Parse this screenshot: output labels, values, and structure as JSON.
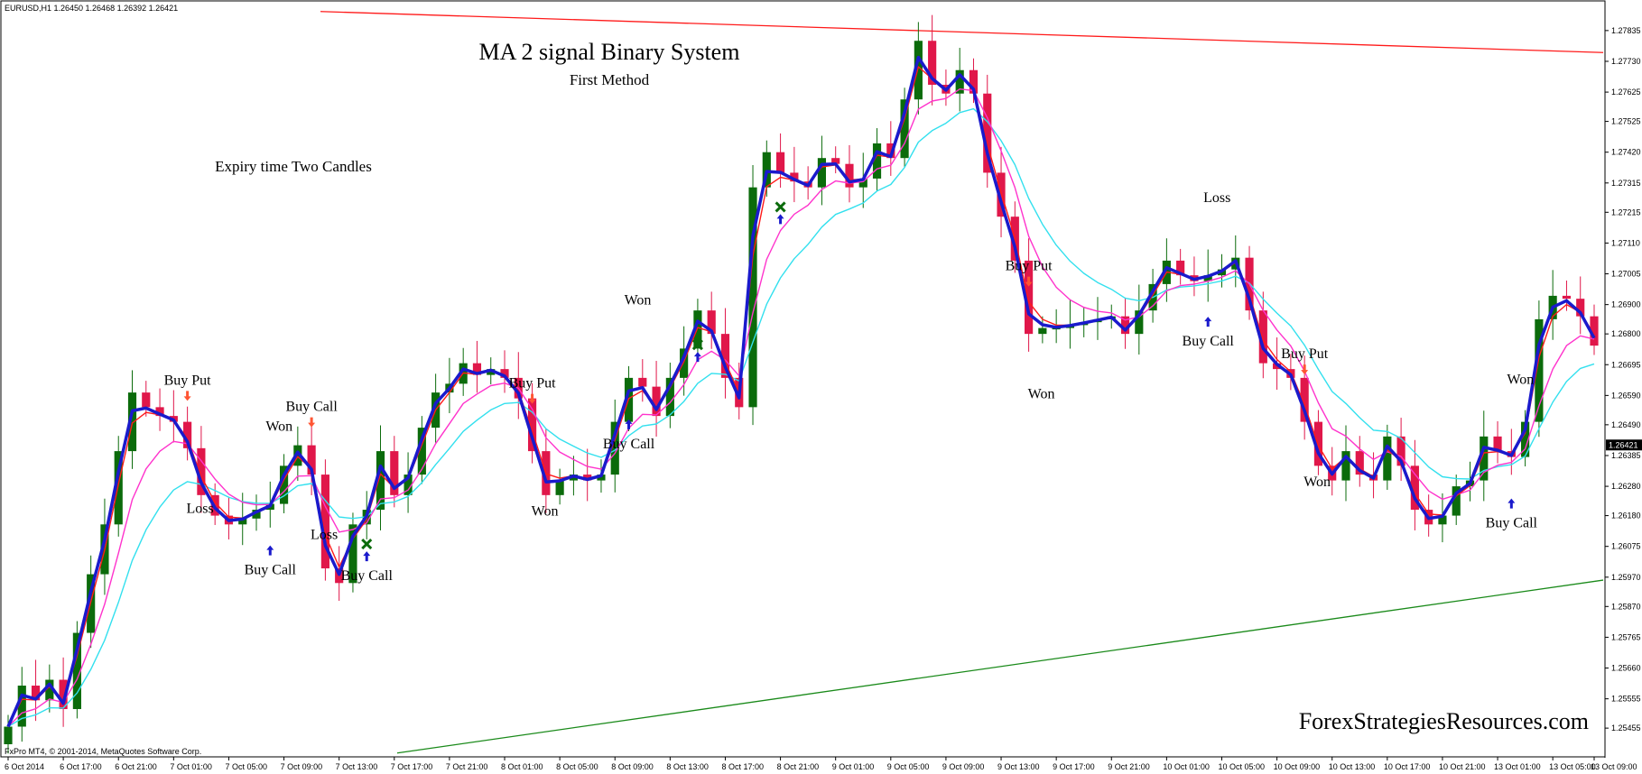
{
  "header": {
    "symbol_line": "EURUSD,H1  1.26450 1.26468 1.26392 1.26421",
    "title": "MA 2 signal Binary System",
    "subtitle": "First Method",
    "expiry_note": "Expiry time Two Candles",
    "footer_left": "FxPro MT4, © 2001-2014, MetaQuotes Software Corp.",
    "watermark": "ForexStrategiesResources.com"
  },
  "colors": {
    "bull": "#0b6b0b",
    "bear": "#e0174a",
    "ma_fast": "#ff1a1a",
    "ma_blue": "#1a1acc",
    "ma_magenta": "#ff33cc",
    "ma_cyan": "#33e0ee",
    "trend_upper": "#ff1a1a",
    "trend_lower": "#1a8a1a",
    "arrow_up": "#1a1acc",
    "arrow_down": "#ff5533",
    "cross": "#0b6b0b"
  },
  "chart_data": {
    "type": "candlestick",
    "title": "MA 2 signal Binary System",
    "subtitle": "First Method",
    "symbol": "EURUSD,H1",
    "current_price": "1.26421",
    "ylim": [
      1.2536,
      1.2793
    ],
    "y_ticks": [
      "1.27835",
      "1.27730",
      "1.27625",
      "1.27525",
      "1.27420",
      "1.27315",
      "1.27215",
      "1.27110",
      "1.27005",
      "1.26900",
      "1.26800",
      "1.26695",
      "1.26590",
      "1.26490",
      "1.26385",
      "1.26280",
      "1.26180",
      "1.26075",
      "1.25970",
      "1.25870",
      "1.25765",
      "1.25660",
      "1.25555",
      "1.25455"
    ],
    "x_ticks": [
      {
        "label": "6 Oct 2014",
        "i": 0
      },
      {
        "label": "6 Oct 17:00",
        "i": 4
      },
      {
        "label": "6 Oct 21:00",
        "i": 8
      },
      {
        "label": "7 Oct 01:00",
        "i": 12
      },
      {
        "label": "7 Oct 05:00",
        "i": 16
      },
      {
        "label": "7 Oct 09:00",
        "i": 20
      },
      {
        "label": "7 Oct 13:00",
        "i": 24
      },
      {
        "label": "7 Oct 17:00",
        "i": 28
      },
      {
        "label": "7 Oct 21:00",
        "i": 32
      },
      {
        "label": "8 Oct 01:00",
        "i": 36
      },
      {
        "label": "8 Oct 05:00",
        "i": 40
      },
      {
        "label": "8 Oct 09:00",
        "i": 44
      },
      {
        "label": "8 Oct 13:00",
        "i": 48
      },
      {
        "label": "8 Oct 17:00",
        "i": 52
      },
      {
        "label": "8 Oct 21:00",
        "i": 56
      },
      {
        "label": "9 Oct 01:00",
        "i": 60
      },
      {
        "label": "9 Oct 05:00",
        "i": 64
      },
      {
        "label": "9 Oct 09:00",
        "i": 68
      },
      {
        "label": "9 Oct 13:00",
        "i": 72
      },
      {
        "label": "9 Oct 17:00",
        "i": 76
      },
      {
        "label": "9 Oct 21:00",
        "i": 80
      },
      {
        "label": "10 Oct 01:00",
        "i": 84
      },
      {
        "label": "10 Oct 05:00",
        "i": 88
      },
      {
        "label": "10 Oct 09:00",
        "i": 92
      },
      {
        "label": "10 Oct 13:00",
        "i": 96
      },
      {
        "label": "10 Oct 17:00",
        "i": 100
      },
      {
        "label": "10 Oct 21:00",
        "i": 104
      },
      {
        "label": "13 Oct 01:00",
        "i": 108
      },
      {
        "label": "13 Oct 05:00",
        "i": 112
      },
      {
        "label": "13 Oct 09:00",
        "i": 115
      }
    ],
    "closes": [
      1.2546,
      1.256,
      1.2555,
      1.2562,
      1.2552,
      1.2578,
      1.2598,
      1.2615,
      1.264,
      1.266,
      1.2655,
      1.2652,
      1.265,
      1.2641,
      1.2625,
      1.2618,
      1.2615,
      1.2617,
      1.262,
      1.2622,
      1.2635,
      1.2642,
      1.2632,
      1.26,
      1.2595,
      1.2615,
      1.262,
      1.264,
      1.2625,
      1.2632,
      1.2648,
      1.266,
      1.2663,
      1.267,
      1.2666,
      1.2668,
      1.2665,
      1.2658,
      1.264,
      1.2625,
      1.263,
      1.2632,
      1.263,
      1.2632,
      1.265,
      1.2665,
      1.2662,
      1.2652,
      1.2665,
      1.2675,
      1.2688,
      1.268,
      1.2665,
      1.2655,
      1.273,
      1.2742,
      1.2735,
      1.2732,
      1.273,
      1.274,
      1.2738,
      1.273,
      1.2733,
      1.2745,
      1.274,
      1.276,
      1.278,
      1.2765,
      1.2762,
      1.277,
      1.2762,
      1.2735,
      1.272,
      1.2705,
      1.268,
      1.2682,
      1.2682,
      1.2683,
      1.2684,
      1.2685,
      1.2686,
      1.268,
      1.2688,
      1.2697,
      1.2705,
      1.27,
      1.2698,
      1.27,
      1.2702,
      1.2706,
      1.2688,
      1.267,
      1.2668,
      1.2665,
      1.265,
      1.2635,
      1.263,
      1.264,
      1.2632,
      1.263,
      1.2645,
      1.2635,
      1.262,
      1.2615,
      1.2618,
      1.2628,
      1.263,
      1.2645,
      1.264,
      1.2638,
      1.265,
      1.2685,
      1.2693,
      1.2692,
      1.2686,
      1.2676
    ],
    "signals": [
      {
        "text": "Buy Put",
        "i": 13,
        "arrow": "down",
        "result": "Loss"
      },
      {
        "text": "Buy Call",
        "i": 19,
        "arrow": "up",
        "result": "Won"
      },
      {
        "text": "Buy Call",
        "i": 22,
        "arrow": "down",
        "result": "Loss"
      },
      {
        "text": "Buy Call",
        "i": 26,
        "arrow": "up",
        "result": "cross"
      },
      {
        "text": "Buy Put",
        "i": 38,
        "arrow": "down",
        "result": "Won"
      },
      {
        "text": "Buy Call",
        "i": 45,
        "arrow": "up",
        "result": "Won"
      },
      {
        "text": "",
        "i": 50,
        "arrow": "up",
        "result": "cross"
      },
      {
        "text": "",
        "i": 56,
        "arrow": "up",
        "result": "cross"
      },
      {
        "text": "Buy Put",
        "i": 74,
        "arrow": "down",
        "result": "Won"
      },
      {
        "text": "Buy Call",
        "i": 87,
        "arrow": "up",
        "result": "Loss"
      },
      {
        "text": "Buy Put",
        "i": 94,
        "arrow": "down",
        "result": "Won"
      },
      {
        "text": "Buy Call",
        "i": 109,
        "arrow": "up",
        "result": "Won"
      }
    ],
    "labels": [
      "Buy Put",
      "Buy Call",
      "Won",
      "Loss"
    ],
    "trendlines": [
      {
        "name": "upper",
        "from_price": 1.279,
        "to_price": 1.2776
      },
      {
        "name": "lower",
        "from_price": 1.2537,
        "to_price": 1.2596
      }
    ]
  }
}
